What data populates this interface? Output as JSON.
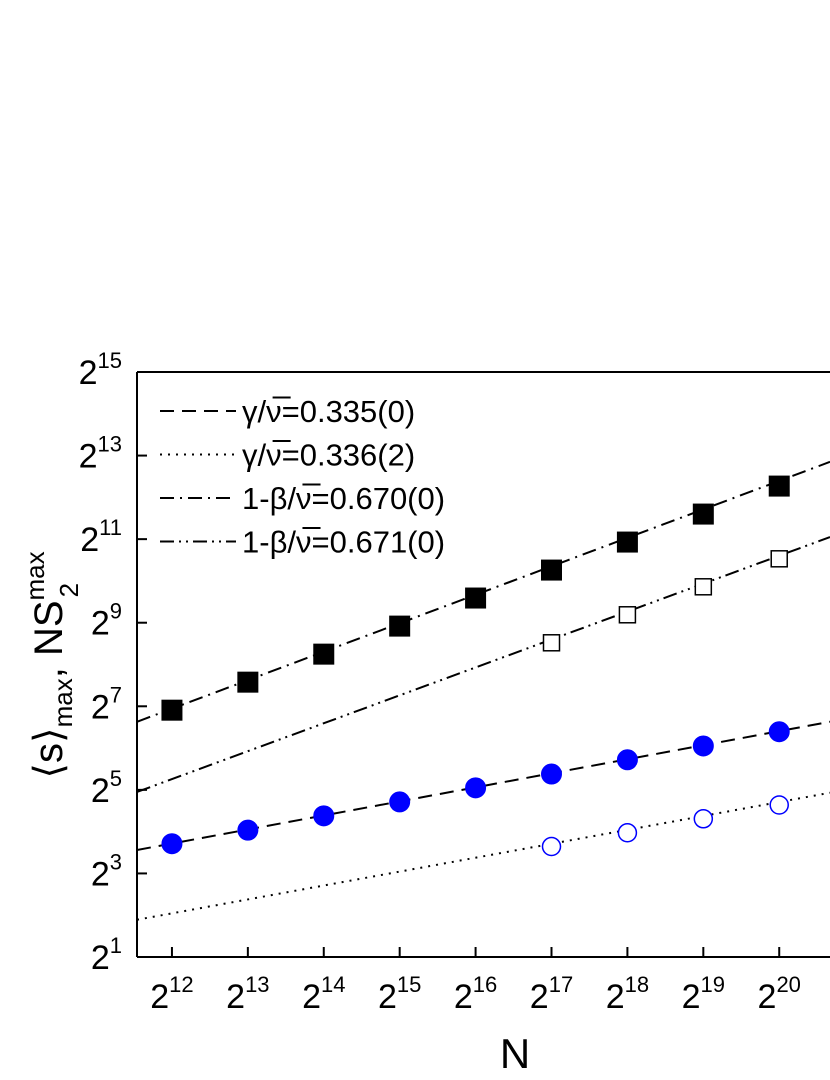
{
  "chart_data": {
    "type": "scatter",
    "log_base_x": 2,
    "log_base_y": 2,
    "xlabel": "N",
    "ylabel": [
      "⟨s⟩",
      "max",
      ", NS",
      "max",
      "2"
    ],
    "xlim": [
      2977,
      1667000
    ],
    "ylim": [
      2,
      32768
    ],
    "xticks": [
      {
        "value": 4096,
        "label": "2",
        "sup": "12"
      },
      {
        "value": 8192,
        "label": "2",
        "sup": "13"
      },
      {
        "value": 16384,
        "label": "2",
        "sup": "14"
      },
      {
        "value": 32768,
        "label": "2",
        "sup": "15"
      },
      {
        "value": 65536,
        "label": "2",
        "sup": "16"
      },
      {
        "value": 131072,
        "label": "2",
        "sup": "17"
      },
      {
        "value": 262144,
        "label": "2",
        "sup": "18"
      },
      {
        "value": 524288,
        "label": "2",
        "sup": "19"
      },
      {
        "value": 1048576,
        "label": "2",
        "sup": "20"
      }
    ],
    "yticks": [
      {
        "value": 2,
        "label": "2",
        "sup": "1"
      },
      {
        "value": 8,
        "label": "2",
        "sup": "3"
      },
      {
        "value": 32,
        "label": "2",
        "sup": "5"
      },
      {
        "value": 128,
        "label": "2",
        "sup": "7"
      },
      {
        "value": 512,
        "label": "2",
        "sup": "9"
      },
      {
        "value": 2048,
        "label": "2",
        "sup": "11"
      },
      {
        "value": 8192,
        "label": "2",
        "sup": "13"
      },
      {
        "value": 32768,
        "label": "2",
        "sup": "15"
      }
    ],
    "series": [
      {
        "marker": "square",
        "filled": true,
        "color": "#000000",
        "x": [
          4096,
          8192,
          16384,
          32768,
          65536,
          131072,
          262144,
          524288,
          1048576
        ],
        "values": [
          120,
          191,
          304,
          484,
          771,
          1226,
          1951,
          3104,
          4938
        ]
      },
      {
        "marker": "square",
        "filled": false,
        "color": "#000000",
        "x": [
          131072,
          262144,
          524288,
          1048576
        ],
        "values": [
          367,
          584,
          929,
          1478
        ]
      },
      {
        "marker": "circle",
        "filled": true,
        "color": "#0000ff",
        "x": [
          4096,
          8192,
          16384,
          32768,
          65536,
          131072,
          262144,
          524288,
          1048576
        ],
        "values": [
          13.1,
          16.4,
          20.8,
          26.2,
          33.1,
          41.6,
          52.7,
          66.3,
          83.9
        ]
      },
      {
        "marker": "circle",
        "filled": false,
        "color": "#0000ff",
        "x": [
          131072,
          262144,
          524288,
          1048576
        ],
        "values": [
          12.5,
          15.7,
          19.8,
          24.9
        ]
      }
    ],
    "fits": [
      {
        "name": "γ/ν̅=0.335(0)",
        "dash": "14,8",
        "color": "#000000",
        "x": [
          2977,
          1667000
        ],
        "values": [
          11.8,
          99.0
        ]
      },
      {
        "name": "γ/ν̅=0.336(2)",
        "dash": "2,6",
        "color": "#000000",
        "x": [
          2977,
          1667000
        ],
        "values": [
          3.71,
          30.5
        ]
      },
      {
        "name": "1-β/ν̅=0.670(0)",
        "dash": "14,6,2,6",
        "color": "#000000",
        "x": [
          2977,
          1667000
        ],
        "values": [
          99.0,
          7380
        ]
      },
      {
        "name": "1-β/ν̅=0.671(0)",
        "dash": "14,5,2,5,2,5",
        "color": "#000000",
        "x": [
          2977,
          1667000
        ],
        "values": [
          30.9,
          2120
        ]
      }
    ]
  }
}
